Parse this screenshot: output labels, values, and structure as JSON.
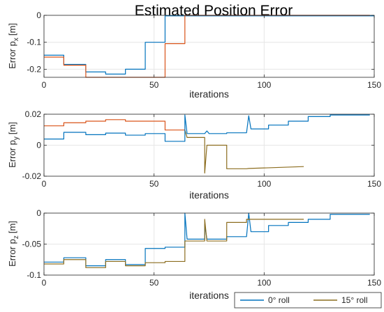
{
  "colors": {
    "series0": "#0072BD",
    "series15": "#D95319",
    "series15_alt": "#8C6D1F",
    "grid": "#E6E6E6",
    "axis": "#262626"
  },
  "legend": {
    "position": "bottom-right",
    "entries": [
      {
        "label": "0° roll"
      },
      {
        "label": "15° roll"
      }
    ]
  },
  "chart_data": [
    {
      "type": "line",
      "title": "Estimated Position Error",
      "xlabel": "iterations",
      "ylabel_main": "Error p",
      "ylabel_sub": "x",
      "ylabel_unit": "[m]",
      "xlim": [
        0,
        150
      ],
      "ylim": [
        -0.23,
        0
      ],
      "grid": true,
      "x_ticks": [
        "0",
        "50",
        "100",
        "150"
      ],
      "y_ticks": [
        {
          "v": 0,
          "label": "0"
        },
        {
          "v": -0.1,
          "label": "-0.1"
        },
        {
          "v": -0.2,
          "label": "-0.2"
        }
      ],
      "series": [
        {
          "color_key": "series0",
          "points": [
            [
              0,
              -0.148
            ],
            [
              9,
              -0.148
            ],
            [
              9,
              -0.182
            ],
            [
              19,
              -0.182
            ],
            [
              19,
              -0.21
            ],
            [
              28,
              -0.21
            ],
            [
              28,
              -0.218
            ],
            [
              37,
              -0.218
            ],
            [
              37,
              -0.2
            ],
            [
              46,
              -0.2
            ],
            [
              46,
              -0.1
            ],
            [
              55,
              -0.1
            ],
            [
              55,
              -0.002
            ],
            [
              150,
              -0.002
            ]
          ]
        },
        {
          "color_key": "series15",
          "points": [
            [
              0,
              -0.155
            ],
            [
              9,
              -0.155
            ],
            [
              9,
              -0.185
            ],
            [
              19,
              -0.185
            ],
            [
              19,
              -0.23
            ],
            [
              55,
              -0.23
            ],
            [
              55,
              -0.105
            ],
            [
              64,
              -0.105
            ],
            [
              64,
              0
            ],
            [
              148,
              0
            ]
          ]
        }
      ]
    },
    {
      "type": "line",
      "xlabel": "iterations",
      "ylabel_main": "Error p",
      "ylabel_sub": "y",
      "ylabel_unit": "[m]",
      "xlim": [
        0,
        150
      ],
      "ylim": [
        -0.02,
        0.02
      ],
      "grid": true,
      "x_ticks": [
        "0",
        "50",
        "100",
        "150"
      ],
      "y_ticks": [
        {
          "v": 0.02,
          "label": "0.02"
        },
        {
          "v": 0,
          "label": "0"
        },
        {
          "v": -0.02,
          "label": "-0.02"
        }
      ],
      "series": [
        {
          "color_key": "series15",
          "points": [
            [
              0,
              0.0125
            ],
            [
              9,
              0.0125
            ],
            [
              9,
              0.0145
            ],
            [
              19,
              0.0145
            ],
            [
              19,
              0.0155
            ],
            [
              28,
              0.0155
            ],
            [
              28,
              0.0165
            ],
            [
              37,
              0.0165
            ],
            [
              37,
              0.0155
            ],
            [
              55,
              0.0155
            ],
            [
              55,
              0.0098
            ],
            [
              64,
              0.0098
            ]
          ]
        },
        {
          "color_key": "series15_alt",
          "points": [
            [
              64,
              0.0098
            ],
            [
              65,
              0.005
            ],
            [
              73,
              0.005
            ],
            [
              73,
              -0.018
            ],
            [
              74,
              0
            ],
            [
              83,
              0
            ],
            [
              83,
              -0.0152
            ],
            [
              92,
              -0.0152
            ],
            [
              93,
              -0.015
            ],
            [
              118,
              -0.0138
            ]
          ]
        },
        {
          "color_key": "series0",
          "points": [
            [
              0,
              0.004
            ],
            [
              9,
              0.004
            ],
            [
              9,
              0.0083
            ],
            [
              19,
              0.0083
            ],
            [
              19,
              0.0068
            ],
            [
              28,
              0.0068
            ],
            [
              28,
              0.0078
            ],
            [
              37,
              0.0078
            ],
            [
              37,
              0.0065
            ],
            [
              46,
              0.0065
            ],
            [
              46,
              0.0075
            ],
            [
              55,
              0.0075
            ],
            [
              55,
              0.0025
            ],
            [
              64,
              0.0025
            ],
            [
              64,
              0.0195
            ],
            [
              65,
              0.0075
            ],
            [
              73,
              0.0075
            ],
            [
              74,
              0.0092
            ],
            [
              75,
              0.0075
            ],
            [
              83,
              0.0075
            ],
            [
              83,
              0.008
            ],
            [
              92,
              0.008
            ],
            [
              93,
              0.019
            ],
            [
              94,
              0.0105
            ],
            [
              102,
              0.0105
            ],
            [
              102,
              0.013
            ],
            [
              111,
              0.013
            ],
            [
              111,
              0.0155
            ],
            [
              120,
              0.0155
            ],
            [
              120,
              0.0185
            ],
            [
              130,
              0.0185
            ],
            [
              130,
              0.0195
            ],
            [
              148,
              0.0195
            ]
          ]
        }
      ]
    },
    {
      "type": "line",
      "xlabel": "iterations",
      "ylabel_main": "Error p",
      "ylabel_sub": "z",
      "ylabel_unit": "[m]",
      "xlim": [
        0,
        150
      ],
      "ylim": [
        -0.1,
        0
      ],
      "grid": true,
      "x_ticks": [
        "0",
        "50",
        "100",
        "150"
      ],
      "y_ticks": [
        {
          "v": 0,
          "label": "0"
        },
        {
          "v": -0.05,
          "label": "-0.05"
        },
        {
          "v": -0.1,
          "label": "-0.1"
        }
      ],
      "series": [
        {
          "color_key": "series0",
          "points": [
            [
              0,
              -0.079
            ],
            [
              9,
              -0.079
            ],
            [
              9,
              -0.072
            ],
            [
              19,
              -0.072
            ],
            [
              19,
              -0.085
            ],
            [
              28,
              -0.085
            ],
            [
              28,
              -0.075
            ],
            [
              37,
              -0.075
            ],
            [
              37,
              -0.083
            ],
            [
              46,
              -0.083
            ],
            [
              46,
              -0.057
            ],
            [
              55,
              -0.057
            ],
            [
              55,
              -0.055
            ],
            [
              64,
              -0.055
            ],
            [
              64,
              0
            ],
            [
              65,
              -0.042
            ],
            [
              73,
              -0.042
            ],
            [
              73,
              -0.018
            ],
            [
              74,
              -0.042
            ],
            [
              83,
              -0.042
            ],
            [
              83,
              -0.038
            ],
            [
              92,
              -0.038
            ],
            [
              93,
              0
            ],
            [
              94,
              -0.03
            ],
            [
              102,
              -0.03
            ],
            [
              102,
              -0.02
            ],
            [
              111,
              -0.02
            ],
            [
              111,
              -0.015
            ],
            [
              120,
              -0.015
            ],
            [
              120,
              -0.01
            ],
            [
              130,
              -0.01
            ],
            [
              130,
              -0.002
            ],
            [
              148,
              -0.002
            ]
          ]
        },
        {
          "color_key": "series15_alt",
          "points": [
            [
              0,
              -0.082
            ],
            [
              9,
              -0.082
            ],
            [
              9,
              -0.075
            ],
            [
              19,
              -0.075
            ],
            [
              19,
              -0.088
            ],
            [
              28,
              -0.088
            ],
            [
              28,
              -0.078
            ],
            [
              37,
              -0.078
            ],
            [
              37,
              -0.085
            ],
            [
              46,
              -0.085
            ],
            [
              46,
              -0.08
            ],
            [
              55,
              -0.08
            ],
            [
              55,
              -0.078
            ],
            [
              64,
              -0.078
            ],
            [
              64,
              -0.045
            ],
            [
              73,
              -0.045
            ],
            [
              73,
              -0.01
            ],
            [
              74,
              -0.045
            ],
            [
              83,
              -0.045
            ],
            [
              83,
              -0.015
            ],
            [
              92,
              -0.015
            ],
            [
              92,
              -0.01
            ],
            [
              118,
              -0.01
            ]
          ]
        }
      ]
    }
  ]
}
